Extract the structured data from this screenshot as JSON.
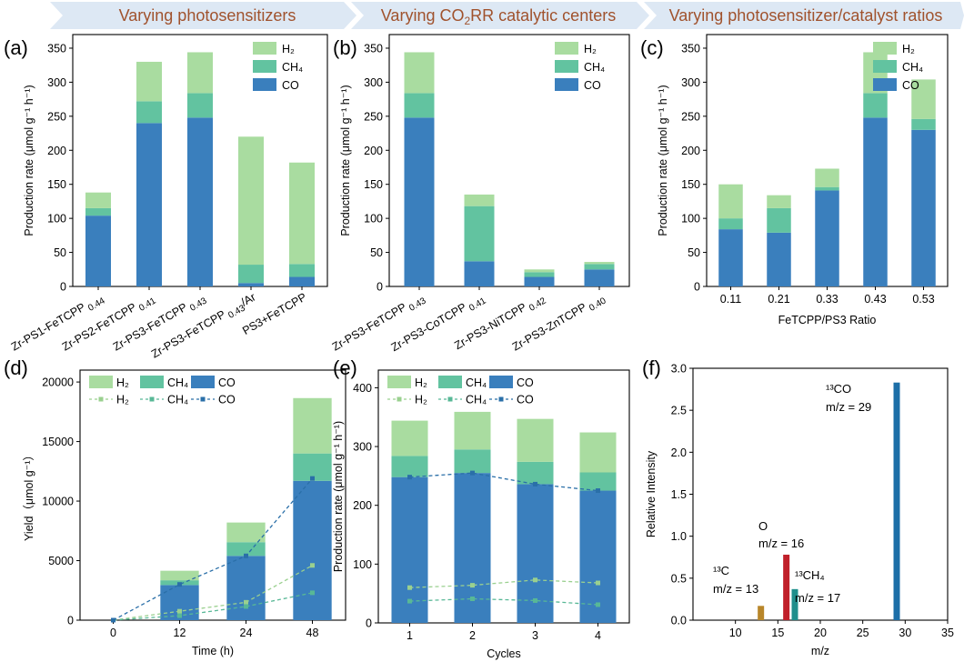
{
  "banners": [
    {
      "text": "Varying photosensitizers"
    },
    {
      "text": "Varying CO",
      "sub": "2",
      "after": "RR catalytic centers"
    },
    {
      "text": "Varying photosensitizer/catalyst ratios"
    }
  ],
  "colors": {
    "CO": "#3a7fbd",
    "CH4": "#62c3a0",
    "H2": "#a9dca0",
    "peak_13C": "#b8862a",
    "peak_O": "#c0202a",
    "peak_13CH4": "#1f8f8c",
    "peak_13CO": "#1d6fa8",
    "banner": "#dde8f4"
  },
  "chart_data": [
    {
      "panel": "(a)",
      "type": "bar",
      "stacked": true,
      "ylabel": "Production rate (μmol g⁻¹ h⁻¹)",
      "ylim": [
        0,
        370
      ],
      "yticks": [
        0,
        50,
        100,
        150,
        200,
        250,
        300,
        350
      ],
      "legend": [
        "H₂",
        "CH₄",
        "CO"
      ],
      "categories": [
        {
          "text": "Zr-PS1-FeTCPP",
          "sub": "0.44"
        },
        {
          "text": "Zr-PS2-FeTCPP",
          "sub": "0.41"
        },
        {
          "text": "Zr-PS3-FeTCPP",
          "sub": "0.43"
        },
        {
          "text": "Zr-PS3-FeTCPP",
          "sub": "0.43",
          "after": "/Ar"
        },
        {
          "text": "PS3+FeTCPP",
          "sub": ""
        }
      ],
      "series": [
        {
          "name": "CO",
          "values": [
            104,
            240,
            248,
            5,
            14
          ]
        },
        {
          "name": "CH4",
          "values": [
            11,
            32,
            36,
            27,
            19
          ]
        },
        {
          "name": "H2",
          "values": [
            23,
            58,
            60,
            188,
            149
          ]
        }
      ]
    },
    {
      "panel": "(b)",
      "type": "bar",
      "stacked": true,
      "ylabel": "Production rate (μmol g⁻¹ h⁻¹)",
      "ylim": [
        0,
        370
      ],
      "yticks": [
        0,
        50,
        100,
        150,
        200,
        250,
        300,
        350
      ],
      "legend": [
        "H₂",
        "CH₄",
        "CO"
      ],
      "categories": [
        {
          "text": "Zr-PS3-FeTCPP",
          "sub": "0.43"
        },
        {
          "text": "Zr-PS3-CoTCPP",
          "sub": "0.41"
        },
        {
          "text": "Zr-PS3-NiTCPP",
          "sub": "0.42"
        },
        {
          "text": "Zr-PS3-ZnTCPP",
          "sub": "0.40"
        }
      ],
      "series": [
        {
          "name": "CO",
          "values": [
            248,
            37,
            14,
            25
          ]
        },
        {
          "name": "CH4",
          "values": [
            36,
            81,
            7,
            8
          ]
        },
        {
          "name": "H2",
          "values": [
            60,
            17,
            4,
            3
          ]
        }
      ]
    },
    {
      "panel": "(c)",
      "type": "bar",
      "stacked": true,
      "ylabel": "Production rate (μmol g⁻¹ h⁻¹)",
      "xlabel": "FeTCPP/PS3 Ratio",
      "ylim": [
        0,
        370
      ],
      "yticks": [
        0,
        50,
        100,
        150,
        200,
        250,
        300,
        350
      ],
      "legend": [
        "H₂",
        "CH₄",
        "CO"
      ],
      "categories": [
        "0.11",
        "0.21",
        "0.33",
        "0.43",
        "0.53"
      ],
      "series": [
        {
          "name": "CO",
          "values": [
            84,
            79,
            141,
            248,
            230
          ]
        },
        {
          "name": "CH4",
          "values": [
            16,
            36,
            5,
            36,
            16
          ]
        },
        {
          "name": "H2",
          "values": [
            50,
            19,
            27,
            60,
            58
          ]
        }
      ]
    },
    {
      "panel": "(d)",
      "type": "bar+line",
      "stacked": true,
      "ylabel": "Yield（μmol g⁻¹）",
      "xlabel": "Time (h)",
      "ylim": [
        0,
        21000
      ],
      "yticks": [
        0,
        5000,
        10000,
        15000,
        20000
      ],
      "legend_bars": [
        "H₂",
        "CH₄",
        "CO"
      ],
      "legend_lines": [
        "H₂",
        "CH₄",
        "CO"
      ],
      "categories": [
        "0",
        "12",
        "24",
        "48"
      ],
      "series": [
        {
          "name": "CO",
          "values": [
            0,
            2950,
            5400,
            11700
          ]
        },
        {
          "name": "CH4",
          "values": [
            0,
            400,
            1150,
            2300
          ]
        },
        {
          "name": "H2",
          "values": [
            0,
            800,
            1650,
            4650
          ]
        }
      ],
      "lines": [
        {
          "name": "H2",
          "values": [
            0,
            750,
            1500,
            4600
          ]
        },
        {
          "name": "CH4",
          "values": [
            0,
            380,
            1150,
            2300
          ]
        },
        {
          "name": "CO",
          "values": [
            0,
            3000,
            5400,
            11900
          ]
        }
      ]
    },
    {
      "panel": "(e)",
      "type": "bar+line",
      "stacked": true,
      "ylabel": "Production rate (μmol g⁻¹ h⁻¹)",
      "xlabel": "Cycles",
      "ylim": [
        0,
        430
      ],
      "yticks": [
        0,
        100,
        200,
        300,
        400
      ],
      "legend_bars": [
        "H₂",
        "CH₄",
        "CO"
      ],
      "legend_lines": [
        "H₂",
        "CH₄",
        "CO"
      ],
      "categories": [
        "1",
        "2",
        "3",
        "4"
      ],
      "series": [
        {
          "name": "CO",
          "values": [
            248,
            255,
            236,
            225
          ]
        },
        {
          "name": "CH4",
          "values": [
            36,
            40,
            38,
            31
          ]
        },
        {
          "name": "H2",
          "values": [
            60,
            64,
            73,
            68
          ]
        }
      ],
      "lines": [
        {
          "name": "H2",
          "values": [
            60,
            64,
            73,
            68
          ]
        },
        {
          "name": "CH4",
          "values": [
            37,
            41,
            38,
            31
          ]
        },
        {
          "name": "CO",
          "values": [
            248,
            255,
            236,
            225
          ]
        }
      ]
    },
    {
      "panel": "(f)",
      "type": "bar",
      "ylabel": "Relative Intensity",
      "xlabel": "m/z",
      "xlim": [
        5,
        35
      ],
      "xticks": [
        10,
        15,
        20,
        25,
        30,
        35
      ],
      "ylim": [
        0,
        3.0
      ],
      "yticks": [
        "0.0",
        "0.5",
        "1.0",
        "1.5",
        "2.0",
        "2.5",
        "3.0"
      ],
      "peaks": [
        {
          "mz": 13,
          "value": 0.17,
          "label": "¹³C",
          "label2": "m/z = 13"
        },
        {
          "mz": 16,
          "value": 0.78,
          "label": "O",
          "label2": "m/z = 16"
        },
        {
          "mz": 17,
          "value": 0.37,
          "label": "¹³CH₄",
          "label2": "m/z = 17"
        },
        {
          "mz": 29,
          "value": 2.83,
          "label": "¹³CO",
          "label2": "m/z = 29"
        }
      ]
    }
  ]
}
